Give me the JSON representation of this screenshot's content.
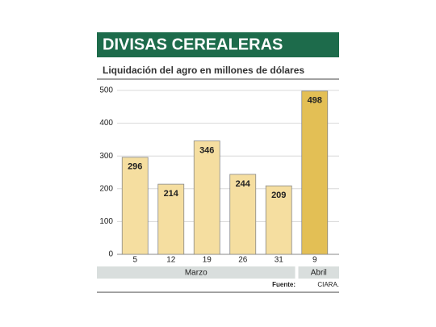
{
  "chart_data": {
    "type": "bar",
    "title": "DIVISAS CEREALERAS",
    "subtitle": "Liquidación del agro en millones de dólares",
    "groups": [
      {
        "label": "Marzo",
        "categories": [
          "5",
          "12",
          "19",
          "26",
          "31"
        ],
        "values": [
          296,
          214,
          346,
          244,
          209
        ],
        "color": "#f5dea0"
      },
      {
        "label": "Abril",
        "categories": [
          "9"
        ],
        "values": [
          498
        ],
        "color": "#e3bf55"
      }
    ],
    "ylim": [
      0,
      500
    ],
    "yticks": [
      0,
      100,
      200,
      300,
      400,
      500
    ],
    "grid": true,
    "source_label": "Fuente:",
    "source": "CIARA."
  }
}
